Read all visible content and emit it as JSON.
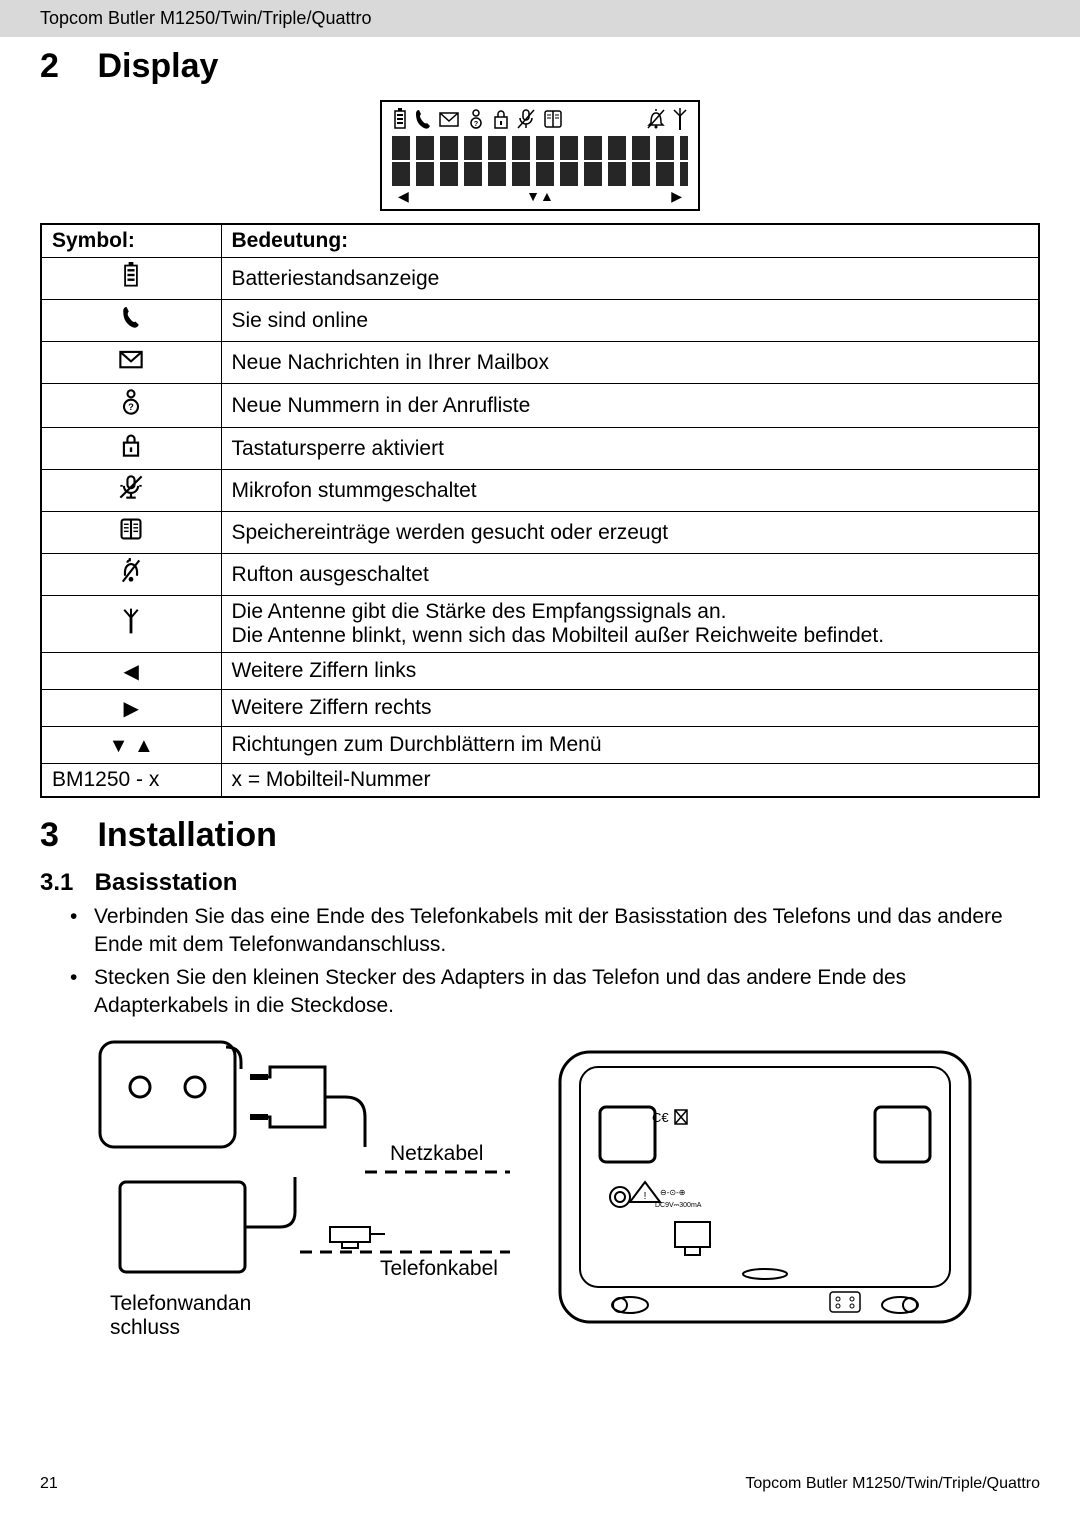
{
  "header": "Topcom Butler M1250/Twin/Triple/Quattro",
  "section2": {
    "num": "2",
    "title": "Display"
  },
  "table": {
    "col_symbol": "Symbol:",
    "col_meaning": "Bedeutung:",
    "rows": [
      {
        "icon": "battery",
        "text": "Batteriestandsanzeige"
      },
      {
        "icon": "phone",
        "text": "Sie sind online"
      },
      {
        "icon": "envelope",
        "text": "Neue Nachrichten in Ihrer Mailbox"
      },
      {
        "icon": "person-q",
        "text": "Neue Nummern in der Anrufliste"
      },
      {
        "icon": "lock",
        "text": "Tastatursperre aktiviert"
      },
      {
        "icon": "mic-off",
        "text": "Mikrofon stummgeschaltet"
      },
      {
        "icon": "book",
        "text": "Speichereinträge werden gesucht oder erzeugt"
      },
      {
        "icon": "bell-off",
        "text": "Rufton ausgeschaltet"
      },
      {
        "icon": "antenna",
        "text": "Die Antenne gibt die Stärke des Empfangssignals an.\nDie Antenne blinkt, wenn sich das Mobilteil außer Reichweite befindet."
      },
      {
        "icon": "left",
        "text": "Weitere Ziffern links"
      },
      {
        "icon": "right",
        "text": "Weitere Ziffern rechts"
      },
      {
        "icon": "updown",
        "text": "Richtungen zum Durchblättern im Menü"
      },
      {
        "icon": "text",
        "label": "BM1250 - x",
        "text": "x = Mobilteil-Nummer"
      }
    ]
  },
  "section3": {
    "num": "3",
    "title": "Installation"
  },
  "sub31": {
    "num": "3.1",
    "title": "Basisstation"
  },
  "bullets": [
    "Verbinden Sie das eine Ende des Telefonkabels mit der Basisstation des Telefons und das andere Ende mit dem Telefonwandanschluss.",
    "Stecken Sie den kleinen Stecker des Adapters in das Telefon und das andere Ende des Adapterkabels in die Steckdose."
  ],
  "diagram": {
    "netzkabel": "Netzkabel",
    "telefonkabel": "Telefonkabel",
    "wand": "Telefonwandan\nschluss"
  },
  "footer": {
    "page": "21",
    "product": "Topcom Butler M1250/Twin/Triple/Quattro"
  }
}
